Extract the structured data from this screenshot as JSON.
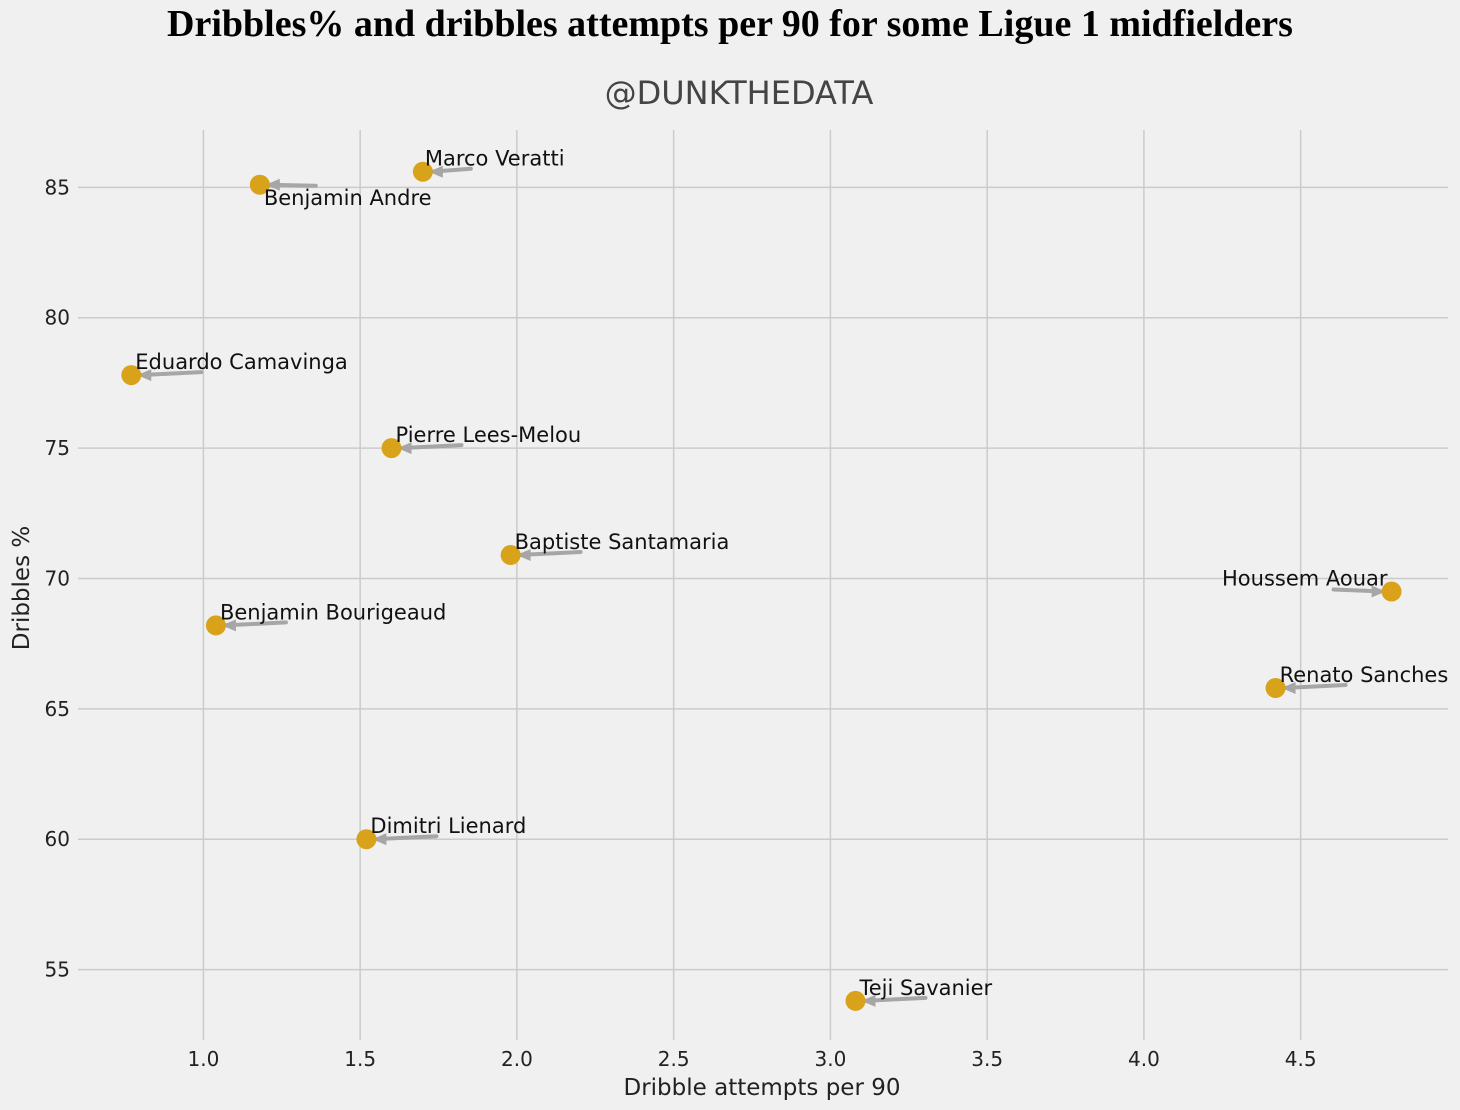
{
  "chart_data": {
    "type": "scatter",
    "title": "Dribbles% and dribbles attempts per 90 for some Ligue 1 midfielders",
    "subtitle": "@DUNKTHEDATA",
    "xlabel": "Dribble attempts per 90",
    "ylabel": "Dribbles %",
    "xlim": [
      0.6,
      4.97
    ],
    "ylim": [
      52.3,
      87.2
    ],
    "xticks": [
      "1.0",
      "1.5",
      "2.0",
      "2.5",
      "3.0",
      "3.5",
      "4.0",
      "4.5"
    ],
    "yticks": [
      "55",
      "60",
      "65",
      "70",
      "75",
      "80",
      "85"
    ],
    "grid": true,
    "marker_color": "#d9a21b",
    "arrow_color": "#a6a6a6",
    "points": [
      {
        "name": "Marco Veratti",
        "x": 1.7,
        "y": 85.6
      },
      {
        "name": "Benjamin Andre",
        "x": 1.18,
        "y": 85.1
      },
      {
        "name": "Eduardo Camavinga",
        "x": 0.77,
        "y": 77.8
      },
      {
        "name": "Pierre Lees-Melou",
        "x": 1.6,
        "y": 75.0
      },
      {
        "name": "Baptiste Santamaria",
        "x": 1.98,
        "y": 70.9
      },
      {
        "name": "Houssem Aouar",
        "x": 4.79,
        "y": 69.5
      },
      {
        "name": "Benjamin Bourigeaud",
        "x": 1.04,
        "y": 68.2
      },
      {
        "name": "Renato Sanches",
        "x": 4.42,
        "y": 65.8
      },
      {
        "name": "Dimitri Lienard",
        "x": 1.52,
        "y": 60.0
      },
      {
        "name": "Teji Savanier",
        "x": 3.08,
        "y": 53.8
      }
    ]
  }
}
